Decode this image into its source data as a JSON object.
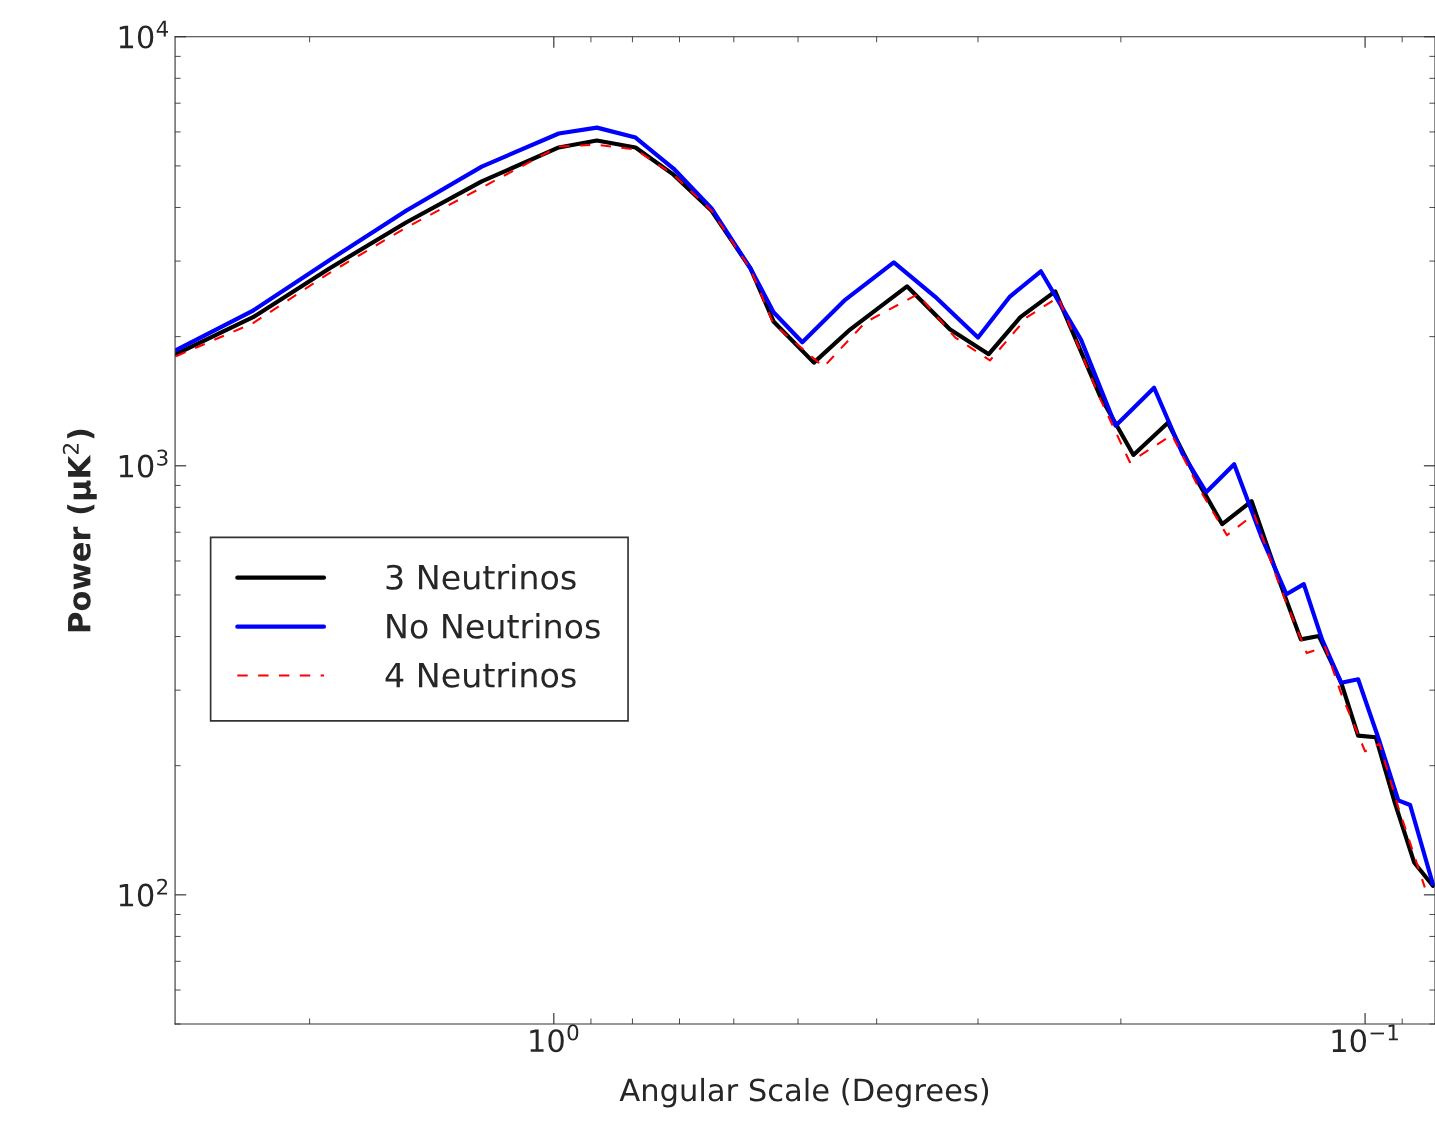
{
  "chart_data": {
    "type": "line",
    "xlabel": "Angular Scale (Degrees)",
    "ylabel": "Power (μK$^{2}$)",
    "log": "xy",
    "xlim": [
      2.93,
      0.082
    ],
    "ylim": [
      50,
      10000
    ],
    "xticks": [
      {
        "value": 1,
        "label": "10$^{0}$"
      },
      {
        "value": 0.1,
        "label": "10$^{−1}$"
      }
    ],
    "yticks": [
      {
        "value": 100,
        "label": "10$^{2}$"
      },
      {
        "value": 1000,
        "label": "10$^{3}$"
      },
      {
        "value": 10000,
        "label": "10$^{4}$"
      }
    ],
    "grid": false,
    "legend": "left",
    "series": [
      {
        "name": "3 Neutrinos",
        "color": "#000000",
        "line_style": "solid",
        "x": [
          2.922,
          2.348,
          1.893,
          1.521,
          1.227,
          0.986,
          0.885,
          0.793,
          0.712,
          0.639,
          0.572,
          0.536,
          0.478,
          0.431,
          0.367,
          0.325,
          0.291,
          0.266,
          0.241,
          0.212,
          0.193,
          0.175,
          0.16,
          0.15,
          0.138,
          0.127,
          0.12,
          0.114,
          0.107,
          0.102,
          0.097,
          0.092,
          0.087,
          0.0825
        ],
        "values": [
          1820,
          2220,
          2880,
          3690,
          4600,
          5520,
          5730,
          5520,
          4770,
          3930,
          2880,
          2170,
          1740,
          2080,
          2620,
          2080,
          1820,
          2220,
          2550,
          1450,
          1060,
          1260,
          905,
          731,
          827,
          527,
          394,
          401,
          312,
          235,
          233,
          165,
          119,
          105
        ]
      },
      {
        "name": "No Neutrinos",
        "color": "#0000ff",
        "line_style": "solid",
        "x": [
          2.922,
          2.348,
          1.893,
          1.521,
          1.227,
          0.986,
          0.885,
          0.793,
          0.712,
          0.639,
          0.572,
          0.536,
          0.494,
          0.437,
          0.381,
          0.339,
          0.3,
          0.274,
          0.251,
          0.224,
          0.203,
          0.182,
          0.168,
          0.157,
          0.145,
          0.134,
          0.125,
          0.119,
          0.113,
          0.107,
          0.102,
          0.096,
          0.091,
          0.088,
          0.0825
        ],
        "values": [
          1860,
          2300,
          3010,
          3930,
          4980,
          5950,
          6140,
          5820,
          4930,
          3980,
          2880,
          2280,
          1940,
          2440,
          2980,
          2480,
          1990,
          2480,
          2840,
          1970,
          1240,
          1520,
          1070,
          868,
          1008,
          678,
          502,
          530,
          394,
          312,
          318,
          228,
          166,
          162,
          106
        ]
      },
      {
        "name": "4 Neutrinos",
        "color": "#ff0000",
        "line_style": "dashed",
        "x": [
          2.922,
          2.348,
          1.893,
          1.521,
          1.227,
          0.986,
          0.885,
          0.793,
          0.712,
          0.639,
          0.572,
          0.536,
          0.465,
          0.413,
          0.356,
          0.32,
          0.29,
          0.261,
          0.239,
          0.212,
          0.195,
          0.173,
          0.16,
          0.148,
          0.137,
          0.127,
          0.118,
          0.112,
          0.107,
          0.1,
          0.096,
          0.091,
          0.0844
        ],
        "values": [
          1800,
          2150,
          2810,
          3590,
          4450,
          5550,
          5600,
          5460,
          4770,
          3930,
          2870,
          2140,
          1700,
          2160,
          2510,
          1990,
          1760,
          2220,
          2470,
          1430,
          1020,
          1180,
          882,
          689,
          771,
          516,
          366,
          378,
          294,
          216,
          225,
          160,
          104
        ]
      }
    ]
  }
}
